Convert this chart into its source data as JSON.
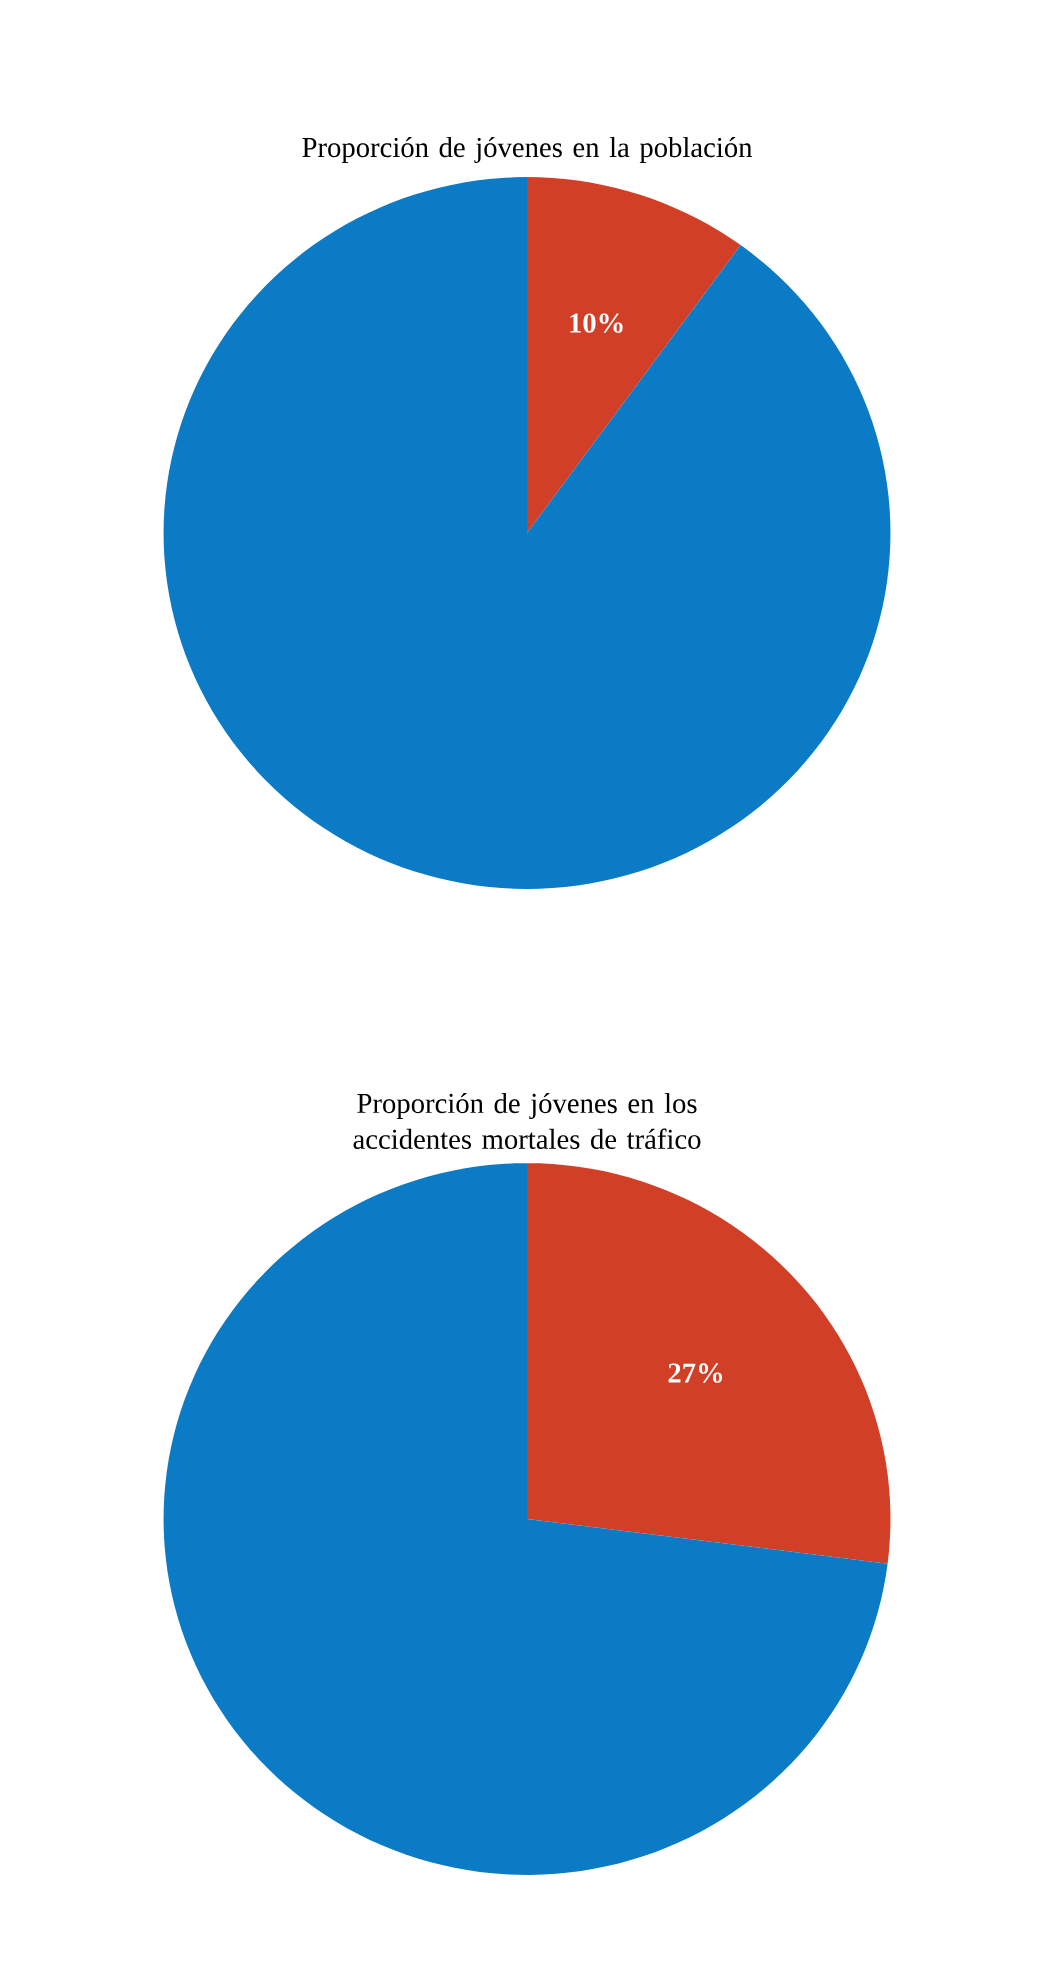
{
  "chart_data": [
    {
      "type": "pie",
      "title": "Proporción de jóvenes en la población",
      "categories": [
        null,
        null
      ],
      "values": [
        10,
        90
      ],
      "colors": [
        "#d23f27",
        "#0a7bc4"
      ],
      "value_labels": [
        "10%",
        null
      ]
    },
    {
      "type": "pie",
      "title": "Proporción de jóvenes en los accidentes mortales de tráfico",
      "categories": [
        null,
        null
      ],
      "values": [
        27,
        73
      ],
      "colors": [
        "#d23f27",
        "#0a7bc4"
      ],
      "value_labels": [
        "27%",
        null
      ]
    }
  ]
}
